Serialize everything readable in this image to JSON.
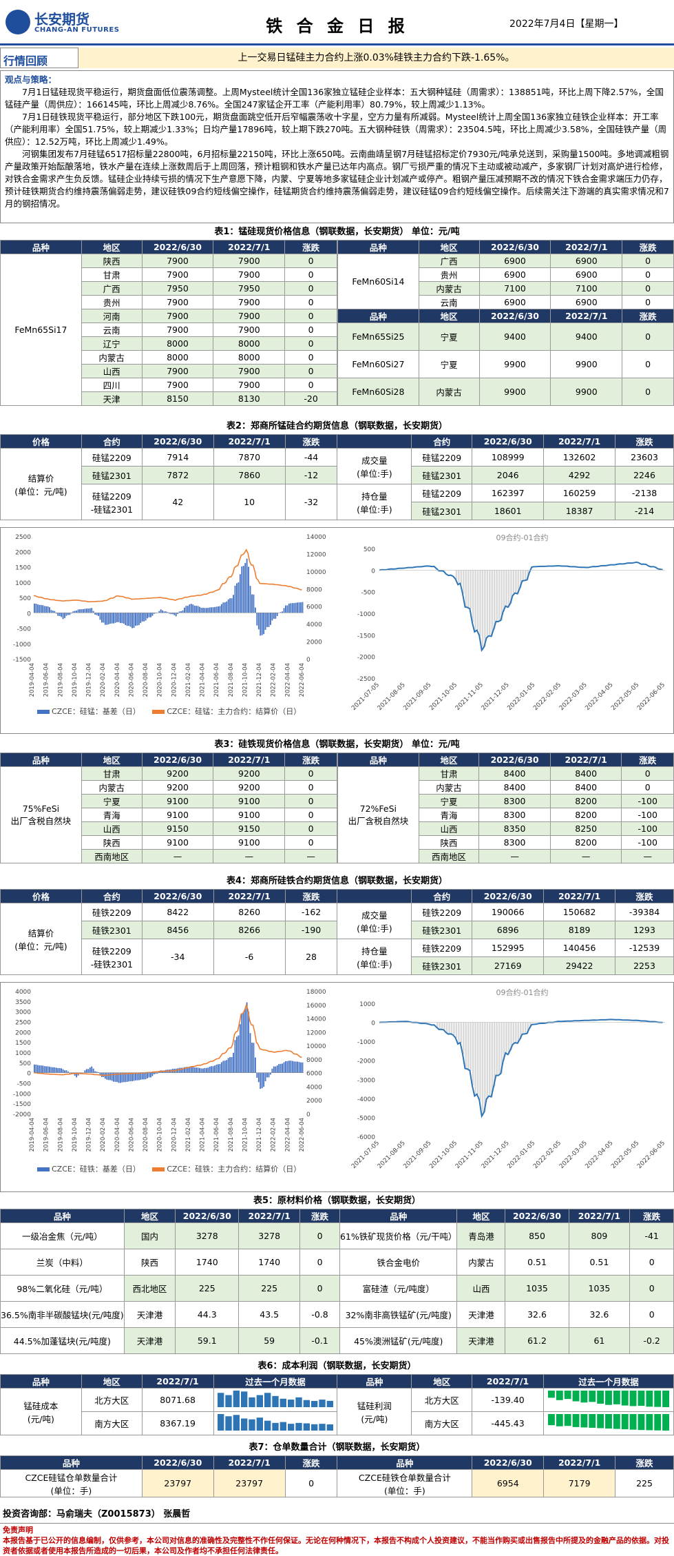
{
  "header": {
    "logo_cn": "长安期货",
    "logo_en": "CHANG-AN FUTURES",
    "title": "铁 合 金 日 报",
    "date": "2022年7月4日【星期一】"
  },
  "review": {
    "label": "行情回顾",
    "text": "上一交易日锰硅主力合约上涨0.03%硅铁主力合约下跌-1.65%。"
  },
  "views": {
    "title": "观点与策略：",
    "p1": "7月1日锰硅现货平稳运行，期货盘面低位震荡调整。上周Mysteel统计全国136家独立锰硅企业样本：五大钢种锰硅（周需求）：138851吨，环比上周下降2.57%，全国锰硅产量（周供应）：166145吨，环比上周减少8.76%。全国247家锰企开工率（产能利用率）80.79%，较上周减少1.13%。",
    "p2": "7月1日硅铁现货平稳运行，部分地区下跌100元，期货盘面跳空低开后窄幅震荡收十字星，空方力量有所减弱。Mysteel统计上周全国136家独立硅铁企业样本：开工率（产能利用率）全国51.75%，较上期减少1.33%；日均产量17896吨，较上期下跌270吨。五大钢种硅铁（周需求）：23504.5吨，环比上周减少3.58%，全国硅铁产量（周供应）：12.52万吨，环比上周减少1.49%。",
    "p3": "河钢集团发布7月硅锰6517招标量22800吨，6月招标量22150吨，环比上涨650吨。云南曲靖呈钢7月硅锰招标定价7930元/吨承兑送到，采购量1500吨。多地调减粗钢产量政策开始酝酿落地，铁水产量在连续上涨数周后于上周回落，预计粗钢和铁水产量已达年内高点。钢厂亏损严重的情况下主动或被动减产，多家钢厂计划对高炉进行检修，对铁合金需求产生负反馈。锰硅企业持续亏损的情况下生产意愿下降，内蒙、宁夏等地多家锰硅企业计划减产或停产。粗钢产量压减预期不改的情况下铁合金需求端压力仍存，预计硅铁期货合约维持震荡偏弱走势，建议硅铁09合约短线偏空操作，硅锰期货合约维持震荡偏弱走势，建议硅锰09合约短线偏空操作。后续需关注下游端的真实需求情况和7月的钢招情况。"
  },
  "t1": {
    "title": "表1：锰硅现货价格信息（钢联数据，长安期货）  单位：元/吨",
    "head": [
      "品种",
      "地区",
      "2022/6/30",
      "2022/7/1",
      "涨跌"
    ],
    "left_name": "FeMn65Si17",
    "left": [
      [
        "陕西",
        "7900",
        "7900",
        "0"
      ],
      [
        "甘肃",
        "7900",
        "7900",
        "0"
      ],
      [
        "广西",
        "7950",
        "7950",
        "0"
      ],
      [
        "贵州",
        "7900",
        "7900",
        "0"
      ],
      [
        "河南",
        "7900",
        "7900",
        "0"
      ],
      [
        "云南",
        "7900",
        "7900",
        "0"
      ],
      [
        "辽宁",
        "8000",
        "8000",
        "0"
      ],
      [
        "内蒙古",
        "8000",
        "8000",
        "0"
      ],
      [
        "山西",
        "7900",
        "7900",
        "0"
      ],
      [
        "四川",
        "7900",
        "7900",
        "0"
      ],
      [
        "天津",
        "8150",
        "8130",
        "-20"
      ]
    ],
    "r1_name": "FeMn60Si14",
    "r1": [
      [
        "广西",
        "6900",
        "6900",
        "0"
      ],
      [
        "贵州",
        "6900",
        "6900",
        "0"
      ],
      [
        "内蒙古",
        "7100",
        "7100",
        "0"
      ],
      [
        "云南",
        "6900",
        "6900",
        "0"
      ]
    ],
    "r2": [
      [
        "FeMn65Si25",
        "宁夏",
        "9400",
        "9400",
        "0"
      ],
      [
        "FeMn60Si27",
        "宁夏",
        "9900",
        "9900",
        "0"
      ],
      [
        "FeMn60Si28",
        "内蒙古",
        "9900",
        "9900",
        "0"
      ]
    ]
  },
  "t2": {
    "title": "表2：郑商所锰硅合约期货信息（钢联数据，长安期货）",
    "head": [
      "价格",
      "合约",
      "2022/6/30",
      "2022/7/1",
      "涨跌",
      "",
      "合约",
      "2022/6/30",
      "2022/7/1",
      "涨跌"
    ],
    "settle_label": "结算价\n(单位：元/吨)",
    "rows": [
      [
        "硅锰2209",
        "7914",
        "7870",
        "-44"
      ],
      [
        "硅锰2301",
        "7872",
        "7860",
        "-12"
      ],
      [
        "硅锰2209\n-硅锰2301",
        "42",
        "10",
        "-32"
      ]
    ],
    "vol_label": "成交量\n(单位:手)",
    "oi_label": "持仓量\n(单位:手)",
    "right": [
      [
        "硅锰2209",
        "108999",
        "132602",
        "23603"
      ],
      [
        "硅锰2301",
        "2046",
        "4292",
        "2246"
      ],
      [
        "硅锰2209",
        "162397",
        "160259",
        "-2138"
      ],
      [
        "硅锰2301",
        "18601",
        "18387",
        "-214"
      ]
    ]
  },
  "c1": {
    "legend1": "CZCE：硅锰：基差（日）",
    "legend2": "CZCE：硅锰：主力合约：结算价（日）",
    "right_title": "09合约-01合约"
  },
  "t3": {
    "title": "表3：硅铁现货价格信息（钢联数据，长安期货）  单位：元/吨",
    "head": [
      "品种",
      "地区",
      "2022/6/30",
      "2022/7/1",
      "涨跌"
    ],
    "left_name": "75%FeSi\n出厂含税自然块",
    "left": [
      [
        "甘肃",
        "9200",
        "9200",
        "0"
      ],
      [
        "内蒙古",
        "9200",
        "9200",
        "0"
      ],
      [
        "宁夏",
        "9100",
        "9100",
        "0"
      ],
      [
        "青海",
        "9100",
        "9100",
        "0"
      ],
      [
        "山西",
        "9150",
        "9150",
        "0"
      ],
      [
        "陕西",
        "9100",
        "9100",
        "0"
      ],
      [
        "西南地区",
        "—",
        "—",
        "—"
      ]
    ],
    "right_name": "72%FeSi\n出厂含税自然块",
    "right": [
      [
        "甘肃",
        "8400",
        "8400",
        "0"
      ],
      [
        "内蒙古",
        "8400",
        "8400",
        "0"
      ],
      [
        "宁夏",
        "8300",
        "8200",
        "-100"
      ],
      [
        "青海",
        "8300",
        "8200",
        "-100"
      ],
      [
        "山西",
        "8350",
        "8250",
        "-100"
      ],
      [
        "陕西",
        "8300",
        "8200",
        "-100"
      ],
      [
        "西南地区",
        "—",
        "—",
        "—"
      ]
    ]
  },
  "t4": {
    "title": "表4：郑商所硅铁合约期货信息（钢联数据，长安期货）",
    "rows": [
      [
        "硅铁2209",
        "8422",
        "8260",
        "-162"
      ],
      [
        "硅铁2301",
        "8456",
        "8266",
        "-190"
      ],
      [
        "硅铁2209\n-硅铁2301",
        "-34",
        "-6",
        "28"
      ]
    ],
    "right": [
      [
        "硅铁2209",
        "190066",
        "150682",
        "-39384"
      ],
      [
        "硅铁2301",
        "6896",
        "8189",
        "1293"
      ],
      [
        "硅铁2209",
        "152995",
        "140456",
        "-12539"
      ],
      [
        "硅铁2301",
        "27169",
        "29422",
        "2253"
      ]
    ]
  },
  "c2": {
    "legend1": "CZCE：硅铁：基差（日）",
    "legend2": "CZCE：硅铁：主力合约：结算价（日）",
    "right_title": "09合约-01合约"
  },
  "t5": {
    "title": "表5：原材料价格（钢联数据，长安期货）",
    "head": [
      "品种",
      "地区",
      "2022/6/30",
      "2022/7/1",
      "涨跌",
      "品种",
      "地区",
      "2022/6/30",
      "2022/7/1",
      "涨跌"
    ],
    "rows": [
      [
        "一级冶金焦（元/吨）",
        "国内",
        "3278",
        "3278",
        "0",
        "61%铁矿现货价格（元/干吨）",
        "青岛港",
        "850",
        "809",
        "-41"
      ],
      [
        "兰炭（中料）",
        "陕西",
        "1740",
        "1740",
        "0",
        "铁合金电价",
        "内蒙古",
        "0.51",
        "0.51",
        "0"
      ],
      [
        "98%二氧化硅（元/吨）",
        "西北地区",
        "225",
        "225",
        "0",
        "富硅渣（元/吨度）",
        "山西",
        "1035",
        "1035",
        "0"
      ],
      [
        "36.5%南非半碳酸锰块(元/吨度)",
        "天津港",
        "44.3",
        "43.5",
        "-0.8",
        "32%南非高铁锰矿(元/吨度)",
        "天津港",
        "32.6",
        "32.6",
        "0"
      ],
      [
        "44.5%加蓬锰块(元/吨度)",
        "天津港",
        "59.1",
        "59",
        "-0.1",
        "45%澳洲锰矿(元/吨度)",
        "天津港",
        "61.2",
        "61",
        "-0.2"
      ]
    ]
  },
  "t6": {
    "title": "表6：成本利润（钢联数据，长安期货）",
    "head": [
      "品种",
      "地区",
      "2022/7/1",
      "过去一个月数据"
    ],
    "cost_label": "锰硅成本\n(元/吨)",
    "profit_label": "锰硅利润\n(元/吨)",
    "cost": [
      [
        "北方大区",
        "8071.68"
      ],
      [
        "南方大区",
        "8367.19"
      ]
    ],
    "profit": [
      [
        "北方大区",
        "-139.40"
      ],
      [
        "南方大区",
        "-445.43"
      ]
    ],
    "spark_cost_n": [
      8250,
      8200,
      8300,
      8280,
      8150,
      8200,
      8250,
      8180,
      8120,
      8100,
      8150,
      8090,
      8070,
      8100,
      8072
    ],
    "spark_cost_s": [
      8600,
      8550,
      8580,
      8500,
      8480,
      8520,
      8450,
      8400,
      8420,
      8380,
      8400,
      8390,
      8370,
      8380,
      8367
    ],
    "spark_profit_n": [
      -60,
      -80,
      -70,
      -90,
      -100,
      -95,
      -110,
      -120,
      -115,
      -125,
      -130,
      -128,
      -135,
      -137,
      -139
    ],
    "spark_profit_s": [
      -300,
      -330,
      -320,
      -350,
      -360,
      -370,
      -380,
      -390,
      -400,
      -410,
      -420,
      -430,
      -435,
      -440,
      -445
    ]
  },
  "t7": {
    "title": "表7：仓单数量合计（钢联数据，长安期货）",
    "head": [
      "品种",
      "2022/6/30",
      "2022/7/1",
      "涨跌",
      "品种",
      "2022/6/30",
      "2022/7/1",
      "涨跌"
    ],
    "row": [
      "CZCE硅锰仓单数量合计\n(单位：手)",
      "23797",
      "23797",
      "0",
      "CZCE硅铁仓单数量合计\n(单位：手)",
      "6954",
      "7179",
      "225"
    ]
  },
  "sign": "投资咨询部：马俞瑞夫（Z0015873） 张晨哲",
  "disclaimer": {
    "title": "免责声明",
    "text": "本报告基于已公开的信息编制，仅供参考，本公司对信息的准确性及完整性不作任何保证。无论在何种情况下，本报告不构成个人投资建议，不能当作购买或出售报告中所提及的金融产品的依据。对投资者依据或者使用本报告所造成的一切后果，本公司及作者均不承担任何法律责任。"
  },
  "chart_data": [
    {
      "type": "bar+line",
      "title": "",
      "series": [
        {
          "name": "CZCE：硅锰：基差（日）",
          "axis": "left",
          "ylim": [
            -1500,
            2500
          ],
          "ticks": [
            "2500",
            "2000",
            "1500",
            "1000",
            "500",
            "0",
            "-500",
            "-1000",
            "-1500"
          ]
        },
        {
          "name": "CZCE：硅锰：主力合约：结算价（日）",
          "axis": "right",
          "ylim": [
            0,
            14000
          ],
          "ticks": [
            "14000",
            "12000",
            "10000",
            "8000",
            "6000",
            "4000",
            "2000",
            "0"
          ]
        }
      ],
      "x": [
        "2019-04-04",
        "2019-06-04",
        "2019-08-04",
        "2019-10-04",
        "2019-12-04",
        "2020-02-04",
        "2020-04-04",
        "2020-06-04",
        "2020-08-04",
        "2020-10-04",
        "2020-12-04",
        "2021-02-04",
        "2021-04-04",
        "2021-06-04",
        "2021-08-04",
        "2021-10-04",
        "2021-12-04",
        "2022-02-04",
        "2022-04-04",
        "2022-06-04"
      ],
      "basis": [
        300,
        200,
        -200,
        100,
        150,
        -400,
        -300,
        -500,
        -200,
        100,
        -100,
        300,
        150,
        200,
        500,
        1800,
        -800,
        -200,
        300,
        350
      ],
      "settle": [
        7200,
        6800,
        6600,
        6700,
        6500,
        6600,
        7200,
        6800,
        6900,
        7000,
        6700,
        7100,
        7300,
        7800,
        9500,
        12500,
        8600,
        8500,
        8300,
        7870
      ]
    },
    {
      "type": "bar+line",
      "title": "09合约-01合约",
      "ylim": [
        -2500,
        500
      ],
      "ticks": [
        "500",
        "0",
        "-500",
        "-1000",
        "-1500",
        "-2000",
        "-2500"
      ],
      "x": [
        "2021-07-05",
        "2021-08-05",
        "2021-09-05",
        "2021-10-05",
        "2021-11-05",
        "2021-12-05",
        "2022-01-05",
        "2022-02-05",
        "2022-03-05",
        "2022-04-05",
        "2022-05-05",
        "2022-06-05"
      ],
      "values": [
        0,
        50,
        100,
        -200,
        -1800,
        -800,
        80,
        100,
        60,
        120,
        180,
        10
      ]
    },
    {
      "type": "bar+line",
      "title": "",
      "series": [
        {
          "name": "CZCE：硅铁：基差（日）",
          "axis": "left",
          "ylim": [
            -2000,
            4000
          ],
          "ticks": [
            "4000",
            "3500",
            "3000",
            "2500",
            "2000",
            "1500",
            "1000",
            "500",
            "0",
            "-500",
            "-1000",
            "-1500",
            "-2000"
          ]
        },
        {
          "name": "CZCE：硅铁：主力合约：结算价（日）",
          "axis": "right",
          "ylim": [
            0,
            18000
          ],
          "ticks": [
            "18000",
            "16000",
            "14000",
            "12000",
            "10000",
            "8000",
            "6000",
            "4000",
            "2000",
            "0"
          ]
        }
      ],
      "x": [
        "2019-04-04",
        "2019-06-04",
        "2019-08-04",
        "2019-10-04",
        "2019-12-04",
        "2020-02-04",
        "2020-04-04",
        "2020-06-04",
        "2020-08-04",
        "2020-10-04",
        "2020-12-04",
        "2021-02-04",
        "2021-04-04",
        "2021-06-04",
        "2021-08-04",
        "2021-10-04",
        "2021-12-04",
        "2022-02-04",
        "2022-04-04",
        "2022-06-04"
      ],
      "basis": [
        400,
        300,
        200,
        -200,
        300,
        -300,
        -500,
        -400,
        -300,
        100,
        200,
        300,
        200,
        400,
        800,
        3500,
        -900,
        300,
        600,
        500
      ],
      "settle": [
        6000,
        5800,
        5700,
        5900,
        5800,
        5600,
        5800,
        5900,
        6000,
        6200,
        6300,
        6800,
        7200,
        8000,
        9800,
        16000,
        9500,
        9000,
        9300,
        8260
      ]
    },
    {
      "type": "bar+line",
      "title": "09合约-01合约",
      "ylim": [
        -6000,
        1000
      ],
      "ticks": [
        "1000",
        "0",
        "-1000",
        "-2000",
        "-3000",
        "-4000",
        "-5000",
        "-6000"
      ],
      "x": [
        "2021-07-05",
        "2021-08-05",
        "2021-09-05",
        "2021-10-05",
        "2021-11-05",
        "2021-12-05",
        "2022-01-05",
        "2022-02-05",
        "2022-03-05",
        "2022-04-05",
        "2022-05-05",
        "2022-06-05"
      ],
      "values": [
        0,
        50,
        -100,
        -800,
        -4800,
        -1500,
        -100,
        50,
        100,
        150,
        100,
        -6
      ]
    }
  ]
}
